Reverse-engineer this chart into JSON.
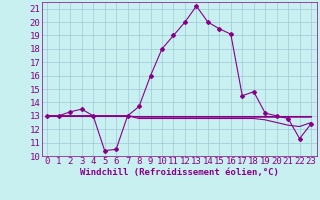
{
  "xlabel": "Windchill (Refroidissement éolien,°C)",
  "ylabel": "",
  "background_color": "#c8f0f0",
  "grid_color": "#a0c8d8",
  "line_color": "#880088",
  "xlim": [
    -0.5,
    23.5
  ],
  "ylim": [
    10,
    21.5
  ],
  "yticks": [
    10,
    11,
    12,
    13,
    14,
    15,
    16,
    17,
    18,
    19,
    20,
    21
  ],
  "xticks": [
    0,
    1,
    2,
    3,
    4,
    5,
    6,
    7,
    8,
    9,
    10,
    11,
    12,
    13,
    14,
    15,
    16,
    17,
    18,
    19,
    20,
    21,
    22,
    23
  ],
  "temperature": [
    13,
    13,
    13.3,
    13.5,
    13.0,
    10.4,
    10.5,
    13.0,
    13.7,
    16.0,
    18.0,
    19.0,
    20.0,
    21.2,
    20.0,
    19.5,
    19.1,
    14.5,
    14.8,
    13.2,
    13.0,
    12.8,
    11.3,
    12.4
  ],
  "flat1": [
    13,
    13,
    13,
    13,
    13,
    13,
    13,
    13,
    13,
    13,
    13,
    13,
    13,
    13,
    13,
    13,
    13,
    13,
    13,
    13,
    13,
    13,
    13,
    13
  ],
  "flat2": [
    13,
    13,
    13,
    13,
    13,
    13,
    13,
    13,
    12.9,
    12.9,
    12.9,
    12.9,
    12.9,
    12.9,
    12.9,
    12.9,
    12.9,
    12.9,
    12.9,
    12.9,
    12.9,
    12.9,
    12.9,
    12.9
  ],
  "flat3": [
    13,
    13,
    13,
    13,
    13,
    13,
    13,
    13,
    12.8,
    12.8,
    12.8,
    12.8,
    12.8,
    12.8,
    12.8,
    12.8,
    12.8,
    12.8,
    12.8,
    12.7,
    12.5,
    12.3,
    12.2,
    12.5
  ],
  "font_color": "#880088",
  "font_size_tick": 6.5,
  "font_size_label": 6.5
}
